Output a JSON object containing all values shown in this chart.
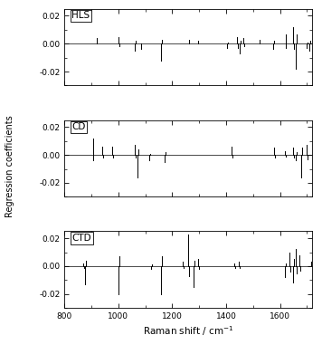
{
  "xlabel_main": "Raman shift / cm",
  "xlabel_super": "−1",
  "ylabel": "Regression coefficients",
  "xlim": [
    800,
    1720
  ],
  "ylim": [
    -0.03,
    0.025
  ],
  "yticks": [
    -0.02,
    0.0,
    0.02
  ],
  "ytick_labels": [
    "-0.02",
    "0.00",
    "0.02"
  ],
  "xticks": [
    800,
    1000,
    1200,
    1400,
    1600
  ],
  "xtick_labels": [
    "800",
    "1000",
    "1200",
    "1400",
    "1600"
  ],
  "subplots": [
    "HLS",
    "CD",
    "CTD"
  ],
  "hls_spikes": [
    [
      920,
      0.004
    ],
    [
      1000,
      0.005
    ],
    [
      1003,
      -0.002
    ],
    [
      1060,
      -0.005
    ],
    [
      1063,
      0.002
    ],
    [
      1085,
      -0.004
    ],
    [
      1160,
      -0.012
    ],
    [
      1163,
      0.003
    ],
    [
      1263,
      0.003
    ],
    [
      1295,
      0.002
    ],
    [
      1405,
      -0.003
    ],
    [
      1408,
      0.001
    ],
    [
      1440,
      0.005
    ],
    [
      1443,
      -0.003
    ],
    [
      1450,
      -0.007
    ],
    [
      1453,
      0.002
    ],
    [
      1465,
      0.004
    ],
    [
      1468,
      -0.002
    ],
    [
      1525,
      0.003
    ],
    [
      1575,
      -0.004
    ],
    [
      1578,
      0.002
    ],
    [
      1620,
      0.007
    ],
    [
      1623,
      -0.003
    ],
    [
      1650,
      0.012
    ],
    [
      1653,
      -0.004
    ],
    [
      1658,
      -0.018
    ],
    [
      1661,
      0.007
    ],
    [
      1700,
      -0.003
    ],
    [
      1703,
      0.001
    ],
    [
      1710,
      -0.005
    ],
    [
      1713,
      0.002
    ]
  ],
  "cd_spikes": [
    [
      905,
      0.012
    ],
    [
      908,
      -0.004
    ],
    [
      940,
      0.006
    ],
    [
      943,
      -0.002
    ],
    [
      978,
      0.006
    ],
    [
      981,
      -0.002
    ],
    [
      1062,
      0.007
    ],
    [
      1065,
      -0.002
    ],
    [
      1072,
      -0.016
    ],
    [
      1075,
      0.004
    ],
    [
      1115,
      -0.004
    ],
    [
      1118,
      0.001
    ],
    [
      1172,
      -0.005
    ],
    [
      1175,
      0.002
    ],
    [
      1420,
      0.006
    ],
    [
      1423,
      -0.002
    ],
    [
      1578,
      0.005
    ],
    [
      1581,
      -0.002
    ],
    [
      1618,
      0.003
    ],
    [
      1621,
      -0.001
    ],
    [
      1648,
      0.005
    ],
    [
      1651,
      -0.002
    ],
    [
      1660,
      -0.004
    ],
    [
      1663,
      0.002
    ],
    [
      1678,
      -0.016
    ],
    [
      1681,
      0.005
    ],
    [
      1698,
      0.007
    ],
    [
      1701,
      -0.003
    ]
  ],
  "ctd_spikes": [
    [
      870,
      0.002
    ],
    [
      873,
      -0.001
    ],
    [
      878,
      -0.013
    ],
    [
      881,
      0.004
    ],
    [
      1000,
      -0.02
    ],
    [
      1003,
      0.007
    ],
    [
      1122,
      -0.002
    ],
    [
      1125,
      0.001
    ],
    [
      1158,
      -0.02
    ],
    [
      1161,
      0.007
    ],
    [
      1240,
      0.003
    ],
    [
      1243,
      -0.001
    ],
    [
      1258,
      0.023
    ],
    [
      1261,
      -0.007
    ],
    [
      1278,
      -0.015
    ],
    [
      1281,
      0.004
    ],
    [
      1295,
      0.005
    ],
    [
      1298,
      -0.002
    ],
    [
      1430,
      0.002
    ],
    [
      1433,
      -0.001
    ],
    [
      1448,
      0.003
    ],
    [
      1451,
      -0.001
    ],
    [
      1618,
      -0.008
    ],
    [
      1621,
      0.002
    ],
    [
      1635,
      0.01
    ],
    [
      1638,
      -0.004
    ],
    [
      1648,
      -0.012
    ],
    [
      1651,
      0.005
    ],
    [
      1658,
      0.012
    ],
    [
      1661,
      -0.005
    ],
    [
      1673,
      0.008
    ],
    [
      1676,
      -0.003
    ],
    [
      1715,
      0.003
    ],
    [
      1718,
      -0.001
    ]
  ]
}
